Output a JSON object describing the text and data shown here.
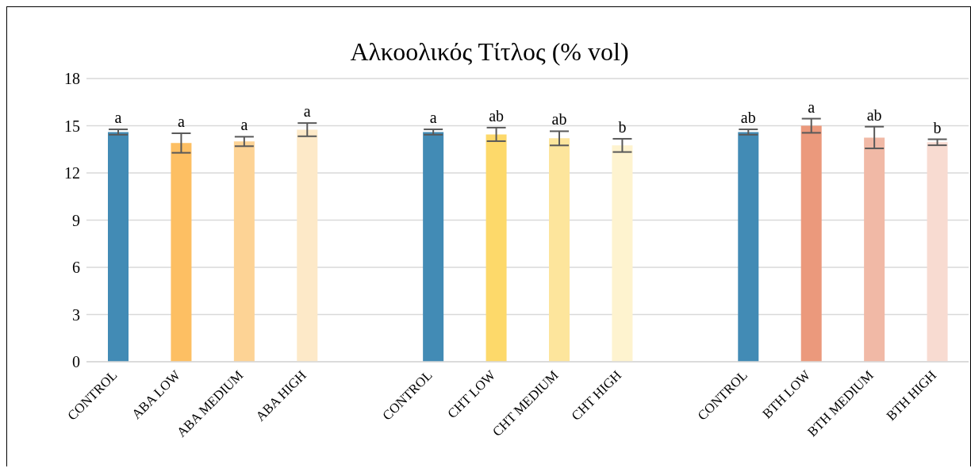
{
  "chart_data": {
    "type": "bar",
    "title": "Αλκοολικός Τίτλος (% vol)",
    "categories": [
      "CONTROL",
      "ABA LOW",
      "ABA MEDIUM",
      "ABA HIGH",
      null,
      "CONTROL",
      "CHT LOW",
      "CHT MEDIUM",
      "CHT HIGH",
      null,
      "CONTROL",
      "BTH LOW",
      "BTH MEDIUM",
      "BTH HIGH"
    ],
    "values": [
      14.6,
      13.9,
      14.0,
      14.75,
      null,
      14.6,
      14.45,
      14.2,
      13.75,
      null,
      14.6,
      15.0,
      14.25,
      13.95
    ],
    "errors": [
      0.17,
      0.62,
      0.3,
      0.42,
      null,
      0.17,
      0.43,
      0.45,
      0.42,
      null,
      0.17,
      0.45,
      0.69,
      0.19
    ],
    "colors": [
      "#428bb5",
      "#fdbf63",
      "#fdd395",
      "#fde9c8",
      null,
      "#428bb5",
      "#fdd96a",
      "#fde59c",
      "#fef3cf",
      null,
      "#428bb5",
      "#eb997c",
      "#f1b9a6",
      "#f8dbd1"
    ],
    "value_labels": [
      "a",
      "a",
      "a",
      "a",
      null,
      "a",
      "ab",
      "ab",
      "b",
      null,
      "ab",
      "a",
      "ab",
      "b"
    ],
    "ylim": [
      0,
      18
    ],
    "yticks": [
      0,
      3,
      6,
      9,
      12,
      15,
      18
    ],
    "grid": "y"
  }
}
